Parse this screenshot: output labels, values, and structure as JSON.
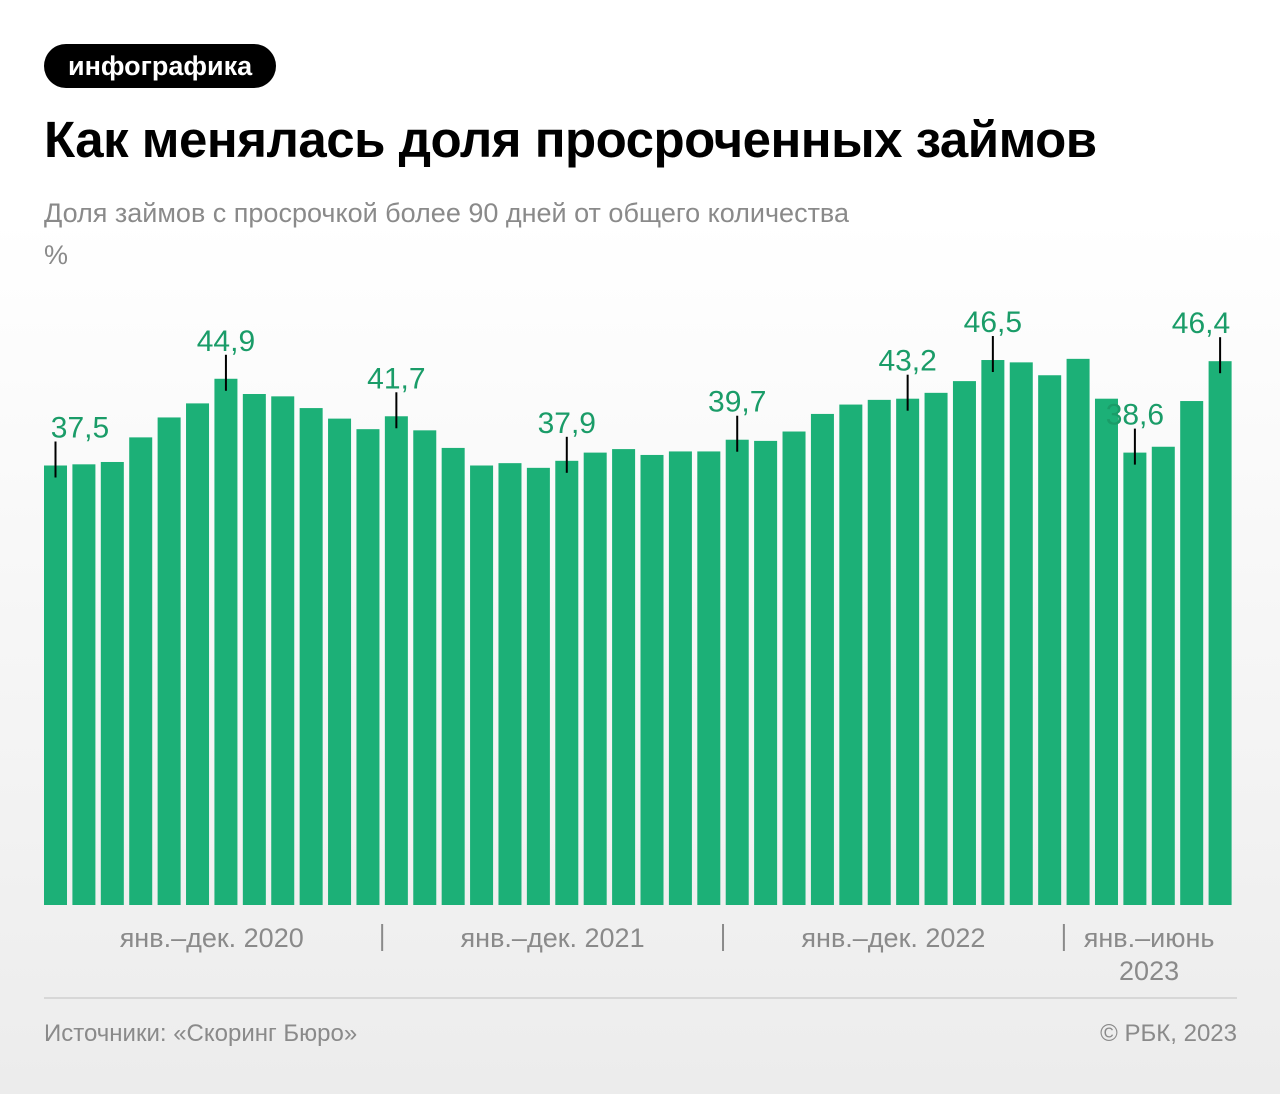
{
  "badge": "инфографика",
  "chart_data": {
    "type": "bar",
    "title": "Как менялась доля просроченных займов",
    "subtitle": "Доля займов с просрочкой более 90 дней от общего количества",
    "unit": "%",
    "categories": [
      null,
      null,
      null,
      null,
      null,
      null,
      null,
      null,
      null,
      null,
      null,
      null,
      null,
      null,
      null,
      null,
      null,
      null,
      null,
      null,
      null,
      null,
      null,
      null,
      null,
      null,
      null,
      null,
      null,
      null,
      null,
      null,
      null,
      null,
      null,
      null,
      null,
      null,
      null,
      null,
      null,
      null
    ],
    "values": [
      37.5,
      37.6,
      37.8,
      39.9,
      41.6,
      42.8,
      44.9,
      43.6,
      43.4,
      42.4,
      41.5,
      40.6,
      41.7,
      40.5,
      39.0,
      37.5,
      37.7,
      37.3,
      37.9,
      38.6,
      38.9,
      38.4,
      38.7,
      38.7,
      39.7,
      39.6,
      40.4,
      41.9,
      42.7,
      43.1,
      43.2,
      43.7,
      44.7,
      46.5,
      46.3,
      45.2,
      46.6,
      43.2,
      38.6,
      39.1,
      43.0,
      46.4
    ],
    "value_labels": [
      "37,5",
      null,
      null,
      null,
      null,
      null,
      "44,9",
      null,
      null,
      null,
      null,
      null,
      "41,7",
      null,
      null,
      null,
      null,
      null,
      "37,9",
      null,
      null,
      null,
      null,
      null,
      "39,7",
      null,
      null,
      null,
      null,
      null,
      "43,2",
      null,
      null,
      "46,5",
      null,
      null,
      null,
      null,
      "38,6",
      null,
      null,
      "46,4"
    ],
    "color": "#1cb077",
    "label_color": "#1a9c68",
    "ylim": [
      0,
      50
    ],
    "groups": [
      {
        "label": "янв.–дек. 2020",
        "count": 12
      },
      {
        "label": "янв.–дек. 2021",
        "count": 12
      },
      {
        "label": "янв.–дек. 2022",
        "count": 12
      },
      {
        "label": "янв.–июнь 2023",
        "count": 6
      }
    ]
  },
  "footer": {
    "source": "Источники: «Скоринг Бюро»",
    "copyright": "© РБК, 2023"
  }
}
